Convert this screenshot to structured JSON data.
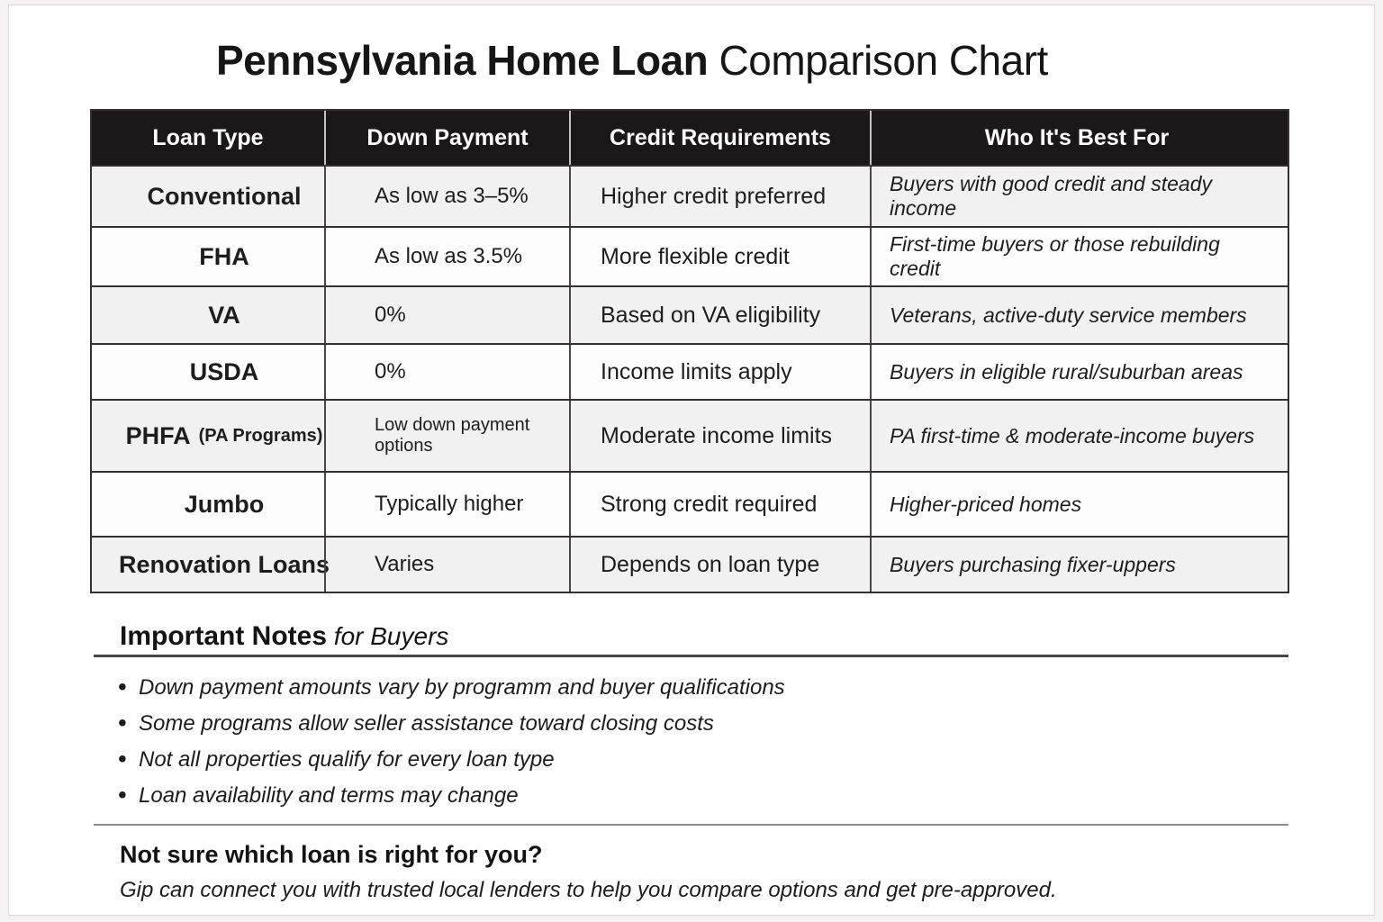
{
  "title": {
    "bold": "Pennsylvania Home Loan",
    "regular": " Comparison Chart"
  },
  "table": {
    "headers": [
      "Loan Type",
      "Down Payment",
      "Credit Requirements",
      "Who It's Best For"
    ],
    "rows": [
      {
        "loan_type": "Conventional",
        "loan_type_suffix": "",
        "down_payment": "As low as 3–5%",
        "credit": "Higher credit preferred",
        "best_for": "Buyers with good credit and steady income",
        "down_payment_small": false
      },
      {
        "loan_type": "FHA",
        "loan_type_suffix": "",
        "down_payment": "As low as 3.5%",
        "credit": "More flexible credit",
        "best_for": "First-time buyers or those rebuilding credit",
        "down_payment_small": false
      },
      {
        "loan_type": "VA",
        "loan_type_suffix": "",
        "down_payment": "0%",
        "credit": "Based on VA eligibility",
        "best_for": "Veterans, active-duty service members",
        "down_payment_small": false
      },
      {
        "loan_type": "USDA",
        "loan_type_suffix": "",
        "down_payment": "0%",
        "credit": "Income limits apply",
        "best_for": "Buyers in eligible rural/suburban areas",
        "down_payment_small": false
      },
      {
        "loan_type": "PHFA",
        "loan_type_suffix": "(PA Programs)",
        "down_payment": "Low down payment options",
        "credit": "Moderate income limits",
        "best_for": "PA first-time & moderate-income buyers",
        "down_payment_small": true
      },
      {
        "loan_type": "Jumbo",
        "loan_type_suffix": "",
        "down_payment": "Typically higher",
        "credit": "Strong credit required",
        "best_for": "Higher-priced homes",
        "down_payment_small": false
      },
      {
        "loan_type": "Renovation Loans",
        "loan_type_suffix": "",
        "down_payment": "Varies",
        "credit": "Depends on loan type",
        "best_for": "Buyers purchasing fixer-uppers",
        "down_payment_small": false
      }
    ]
  },
  "notes": {
    "heading_bold": "Important Notes",
    "heading_italic": " for Buyers",
    "bullets": [
      "Down payment amounts vary by programm and buyer qualifications",
      "Some programs allow seller assistance toward closing costs",
      "Not all properties qualify for every loan type",
      "Loan availability and terms may change"
    ]
  },
  "footer": {
    "heading": "Not sure which loan is right for you?",
    "text": "Gip can connect you with trusted local lenders to help you compare options and get pre-approved."
  },
  "colors": {
    "header_bg": "#1b1819",
    "stripe": "#f2f1f2",
    "border_dark": "#35._placeholder",
    "border_dark_hex": "#353132",
    "text": "#1d1d1d"
  }
}
